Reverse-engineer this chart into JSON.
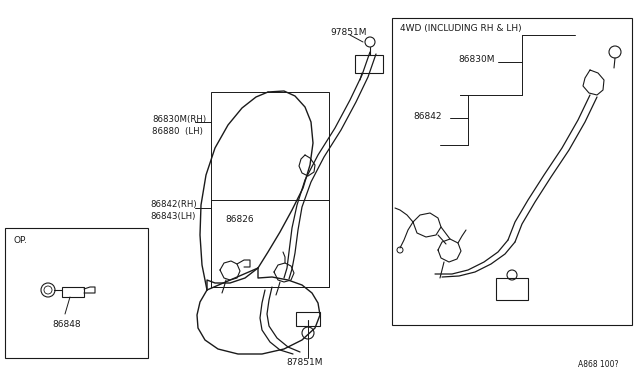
{
  "bg_color": "#ffffff",
  "line_color": "#1a1a1a",
  "text_color": "#1a1a1a",
  "fig_width": 6.4,
  "fig_height": 3.72,
  "dpi": 100,
  "diagram_ref": "A868 100?",
  "op_label": "OP.",
  "op_part": "86848",
  "main_top_label": "97851M",
  "main_label1a": "86830M(RH)",
  "main_label1b": "86880  (LH)",
  "main_label2a": "86842(RH)",
  "main_label2b": "86843(LH)",
  "main_label3": "86826",
  "main_bot_label": "87851M",
  "box4wd_title": "4WD (INCLUDING RH & LH)",
  "box4wd_part1": "86830M",
  "box4wd_part2": "86842"
}
